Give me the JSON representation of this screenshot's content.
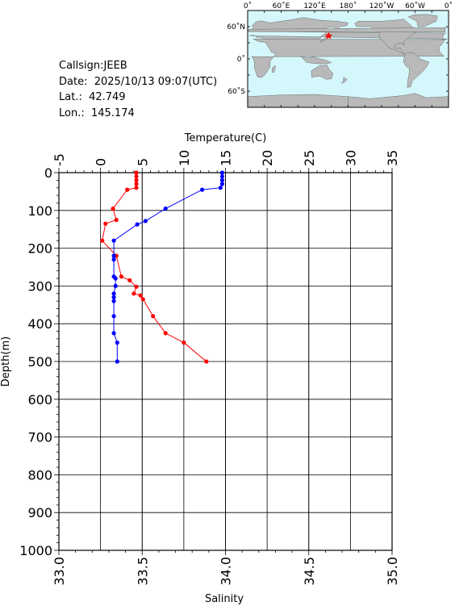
{
  "info": {
    "callsign": "Callsign:JEEB",
    "date": "Date:  2025/10/13 09:07(UTC)",
    "lat": "Lat.:  42.749",
    "lon": "Lon.:  145.174"
  },
  "map": {
    "lon_labels": [
      "0˚",
      "60˚E",
      "120˚E",
      "180˚",
      "120˚W",
      "60˚W",
      "0˚"
    ],
    "lat_labels": [
      "60˚N",
      "0˚",
      "60˚S"
    ],
    "station": {
      "lat": 42.749,
      "lon": 145.174
    },
    "colors": {
      "ocean": "#d4f7fb",
      "land": "#b9b9b9",
      "marker": "#ff0000"
    }
  },
  "chart_data": {
    "type": "line",
    "ylabel": "Depth(m)",
    "temperature_axis": {
      "label": "Temperature(C)",
      "range": [
        -5,
        35
      ],
      "ticks": [
        "-5",
        "0",
        "5",
        "10",
        "15",
        "20",
        "25",
        "30",
        "35"
      ]
    },
    "salinity_axis": {
      "label": "Salinity",
      "range": [
        33.0,
        35.0
      ],
      "ticks": [
        "33.0",
        "33.5",
        "34.0",
        "34.5",
        "35.0"
      ]
    },
    "depth_axis": {
      "range": [
        0,
        1000
      ],
      "ticks": [
        "0",
        "100",
        "200",
        "300",
        "400",
        "500",
        "600",
        "700",
        "800",
        "900",
        "1000"
      ]
    },
    "grid": true,
    "series": [
      {
        "quantity": "Temperature",
        "axis": "top",
        "color": "#ff0000",
        "points": [
          [
            4.3,
            0
          ],
          [
            4.3,
            10
          ],
          [
            4.3,
            20
          ],
          [
            4.3,
            30
          ],
          [
            4.3,
            40
          ],
          [
            3.2,
            45
          ],
          [
            1.5,
            95
          ],
          [
            1.9,
            125
          ],
          [
            0.6,
            135
          ],
          [
            0.2,
            180
          ],
          [
            1.9,
            220
          ],
          [
            2.5,
            275
          ],
          [
            3.5,
            285
          ],
          [
            4.3,
            302
          ],
          [
            4.0,
            320
          ],
          [
            4.8,
            325
          ],
          [
            5.1,
            335
          ],
          [
            6.3,
            380
          ],
          [
            7.8,
            425
          ],
          [
            10.0,
            450
          ],
          [
            12.7,
            500
          ]
        ]
      },
      {
        "quantity": "Salinity",
        "axis": "bottom",
        "color": "#0000ff",
        "points": [
          [
            33.98,
            0
          ],
          [
            33.98,
            10
          ],
          [
            33.98,
            20
          ],
          [
            33.98,
            30
          ],
          [
            33.97,
            40
          ],
          [
            33.86,
            45
          ],
          [
            33.64,
            95
          ],
          [
            33.52,
            128
          ],
          [
            33.47,
            137
          ],
          [
            33.33,
            180
          ],
          [
            33.33,
            220
          ],
          [
            33.33,
            230
          ],
          [
            33.33,
            275
          ],
          [
            33.34,
            280
          ],
          [
            33.34,
            300
          ],
          [
            33.33,
            320
          ],
          [
            33.33,
            330
          ],
          [
            33.33,
            340
          ],
          [
            33.33,
            380
          ],
          [
            33.33,
            425
          ],
          [
            33.35,
            450
          ],
          [
            33.35,
            500
          ]
        ]
      }
    ]
  }
}
